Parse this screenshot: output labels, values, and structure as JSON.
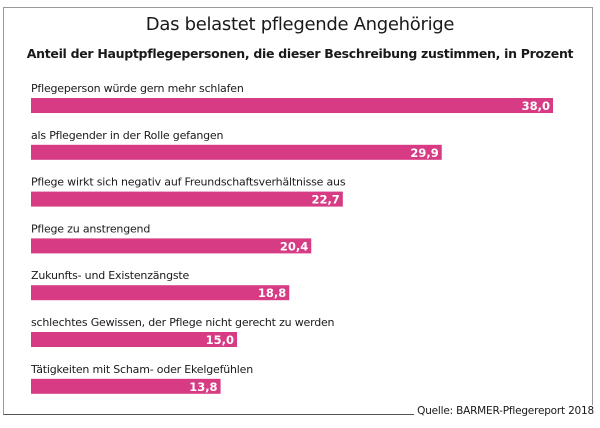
{
  "chart_data": {
    "type": "bar",
    "orientation": "horizontal",
    "title": "Das belastet pflegende Angehörige",
    "subtitle": "Anteil der Hauptpflegepersonen, die dieser Beschreibung zustimmen, in Prozent",
    "categories": [
      "Pflegeperson würde gern mehr schlafen",
      "als Pflegender in der Rolle gefangen",
      "Pflege wirkt sich negativ auf Freundschaftsverhältnisse aus",
      "Pflege zu anstrengend",
      "Zukunfts- und Existenzängste",
      "schlechtes Gewissen, der Pflege nicht gerecht zu werden",
      "Tätigkeiten mit Scham- oder Ekelgefühlen"
    ],
    "values": [
      38.0,
      29.9,
      22.7,
      20.4,
      18.8,
      15.0,
      13.8
    ],
    "value_labels": [
      "38,0",
      "29,9",
      "22,7",
      "20,4",
      "18,8",
      "15,0",
      "13,8"
    ],
    "xlim": [
      0,
      38
    ],
    "grid": false,
    "bar_color": "#d63b84",
    "source": "Quelle: BARMER-Pflegereport 2018"
  }
}
